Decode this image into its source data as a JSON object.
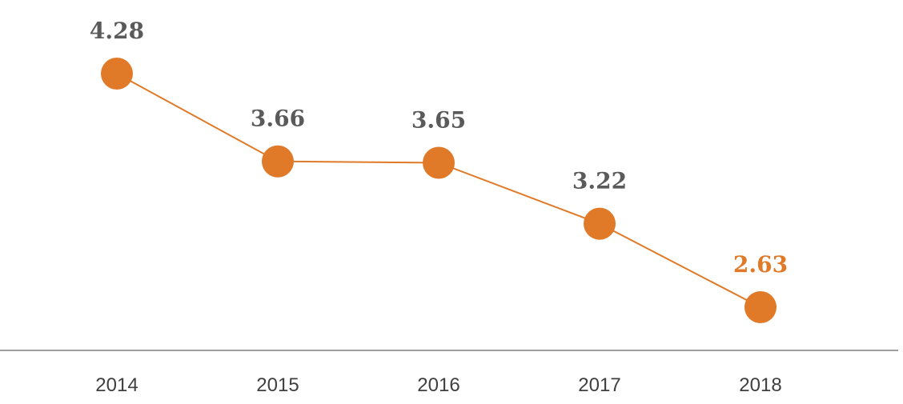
{
  "chart_data": {
    "type": "line",
    "title": "",
    "xlabel": "",
    "ylabel": "",
    "categories": [
      "2014",
      "2015",
      "2016",
      "2017",
      "2018"
    ],
    "series": [
      {
        "values": [
          4.28,
          3.66,
          3.65,
          3.22,
          2.63
        ],
        "value_labels": [
          "4.28",
          "3.66",
          "3.65",
          "3.22",
          "2.63"
        ]
      }
    ],
    "ylim": [
      2.3,
      4.6
    ],
    "grid": false,
    "legend": "none",
    "colors": {
      "line": "#E07A28",
      "marker": "#E07A28",
      "label_default": "#5A5A5A",
      "label_highlight": "#E07A28",
      "axis": "#7F7F7F",
      "tick_text": "#3F3F3F"
    },
    "highlight_index": 4
  }
}
